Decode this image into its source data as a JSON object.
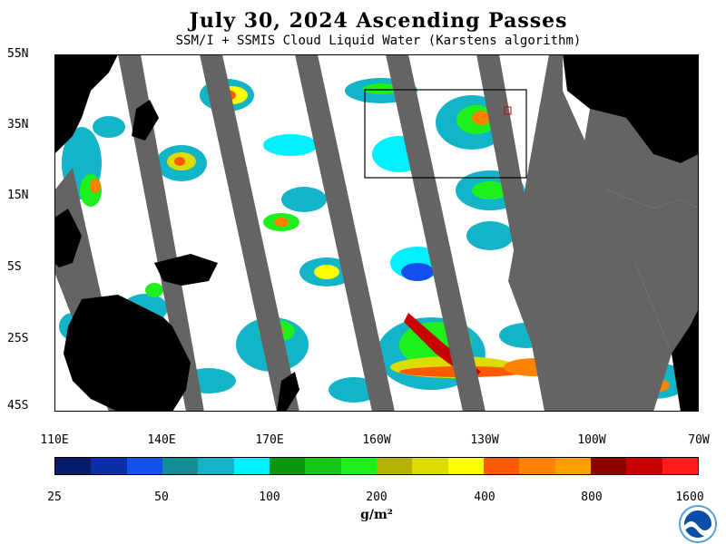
{
  "title": "July 30, 2024  Ascending Passes",
  "subtitle": "SSM/I + SSMIS Cloud Liquid Water (Karstens algorithm)",
  "map": {
    "lat_labels": [
      "55N",
      "35N",
      "15N",
      "5S",
      "25S",
      "45S"
    ],
    "lon_labels": [
      "110E",
      "140E",
      "170E",
      "160W",
      "130W",
      "100W",
      "70W"
    ],
    "colors": {
      "land": "#000000",
      "no_data_gap": "#646464",
      "ocean_clear": "#ffffff"
    },
    "features": [
      "region-box"
    ]
  },
  "colorbar": {
    "colors": [
      "#081c6e",
      "#0b2fa8",
      "#1450f0",
      "#148c96",
      "#14b4c8",
      "#00f0ff",
      "#0a960a",
      "#14c814",
      "#1ef01e",
      "#b4b400",
      "#dcdc00",
      "#ffff00",
      "#ff5a00",
      "#ff8200",
      "#ffa000",
      "#8c0000",
      "#c80000",
      "#ff1e1e"
    ],
    "tick_labels": [
      "25",
      "50",
      "100",
      "200",
      "400",
      "800",
      "1600"
    ],
    "units": "g/m²"
  },
  "logo": {
    "text": "NOAA"
  }
}
